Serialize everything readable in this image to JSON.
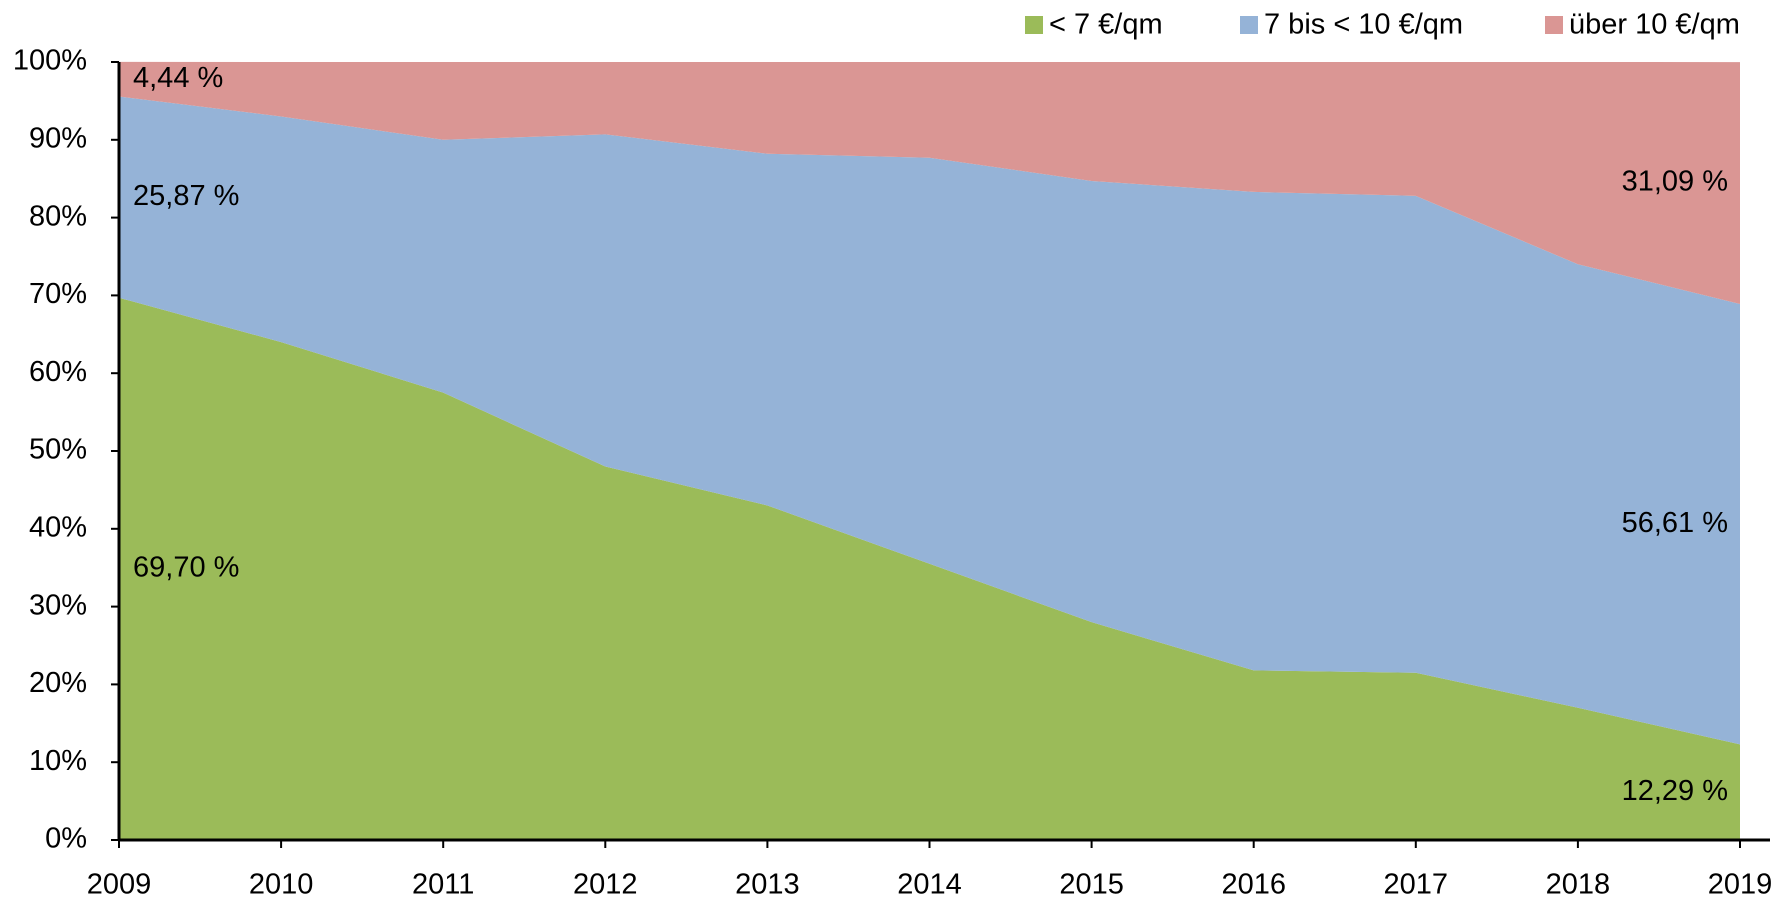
{
  "chart_data": {
    "type": "stacked_area",
    "categories": [
      "2009",
      "2010",
      "2011",
      "2012",
      "2013",
      "2014",
      "2015",
      "2016",
      "2017",
      "2018",
      "2019"
    ],
    "series": [
      {
        "name": "< 7 €/qm",
        "color": "#9bbb59",
        "values": [
          69.7,
          64,
          57.5,
          48,
          43,
          35.5,
          28,
          21.8,
          21.5,
          17,
          12.29
        ],
        "value_labels": [
          "69,70 %",
          null,
          null,
          null,
          null,
          null,
          null,
          null,
          null,
          null,
          "12,29 %"
        ]
      },
      {
        "name": "7 bis < 10 €/qm",
        "color": "#95b3d7",
        "values": [
          25.87,
          29,
          32.5,
          42.7,
          45.2,
          52.2,
          56.7,
          61.5,
          61.3,
          57,
          56.61
        ],
        "value_labels": [
          "25,87 %",
          null,
          null,
          null,
          null,
          null,
          null,
          null,
          null,
          null,
          "56,61 %"
        ]
      },
      {
        "name": "über 10 €/qm",
        "color": "#da9694",
        "values": [
          4.44,
          7,
          10,
          9.3,
          11.8,
          12.3,
          15.3,
          16.7,
          17.2,
          26,
          31.09
        ],
        "value_labels": [
          "4,44 %",
          null,
          null,
          null,
          null,
          null,
          null,
          null,
          null,
          null,
          "31,09 %"
        ]
      }
    ],
    "ylim": [
      0,
      100
    ],
    "yticks": [
      {
        "value": 0,
        "label": "0%"
      },
      {
        "value": 10,
        "label": "10%"
      },
      {
        "value": 20,
        "label": "20%"
      },
      {
        "value": 30,
        "label": "30%"
      },
      {
        "value": 40,
        "label": "40%"
      },
      {
        "value": 50,
        "label": "50%"
      },
      {
        "value": 60,
        "label": "60%"
      },
      {
        "value": 70,
        "label": "70%"
      },
      {
        "value": 80,
        "label": "80%"
      },
      {
        "value": 90,
        "label": "90%"
      },
      {
        "value": 100,
        "label": "100%"
      }
    ],
    "legend": "top-right"
  }
}
